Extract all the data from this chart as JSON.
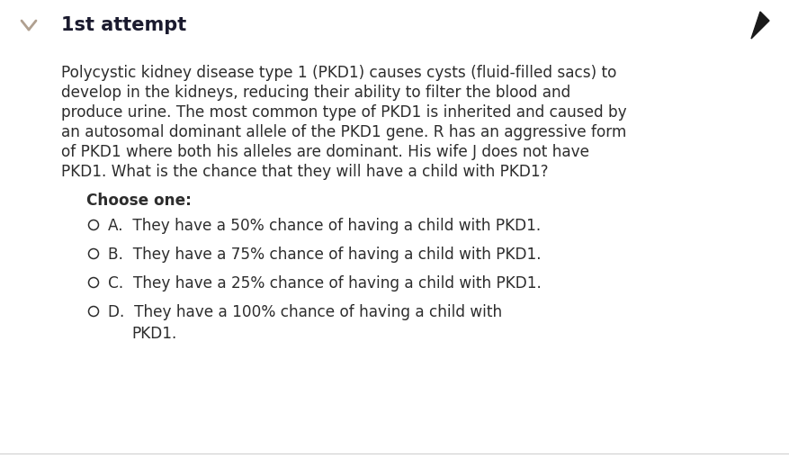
{
  "background_color": "#ffffff",
  "title": "1st attempt",
  "title_color": "#1a1a2e",
  "title_fontsize": 15,
  "chevron_color": "#b0a090",
  "arrow_color": "#1a1a1a",
  "text_color": "#2d2d2d",
  "font_family": "DejaVu Sans",
  "para_fontsize": 12.2,
  "option_fontsize": 12.2,
  "choose_fontsize": 12.2,
  "para_lines": [
    "Polycystic kidney disease type 1 (PKD1) causes cysts (fluid-filled sacs) to",
    "develop in the kidneys, reducing their ability to filter the blood and",
    "produce urine. The most common type of PKD1 is inherited and caused by",
    "an autosomal dominant allele of the PKD1 gene. R has an aggressive form",
    "of PKD1 where both his alleles are dominant. His wife J does not have",
    "PKD1. What is the chance that they will have a child with PKD1?"
  ],
  "choose_one": "Choose one:",
  "option_lines": [
    "A.  They have a 50% chance of having a child with PKD1.",
    "B.  They have a 75% chance of having a child with PKD1.",
    "C.  They have a 25% chance of having a child with PKD1.",
    "D.  They have a 100% chance of having a child with",
    "PKD1."
  ]
}
